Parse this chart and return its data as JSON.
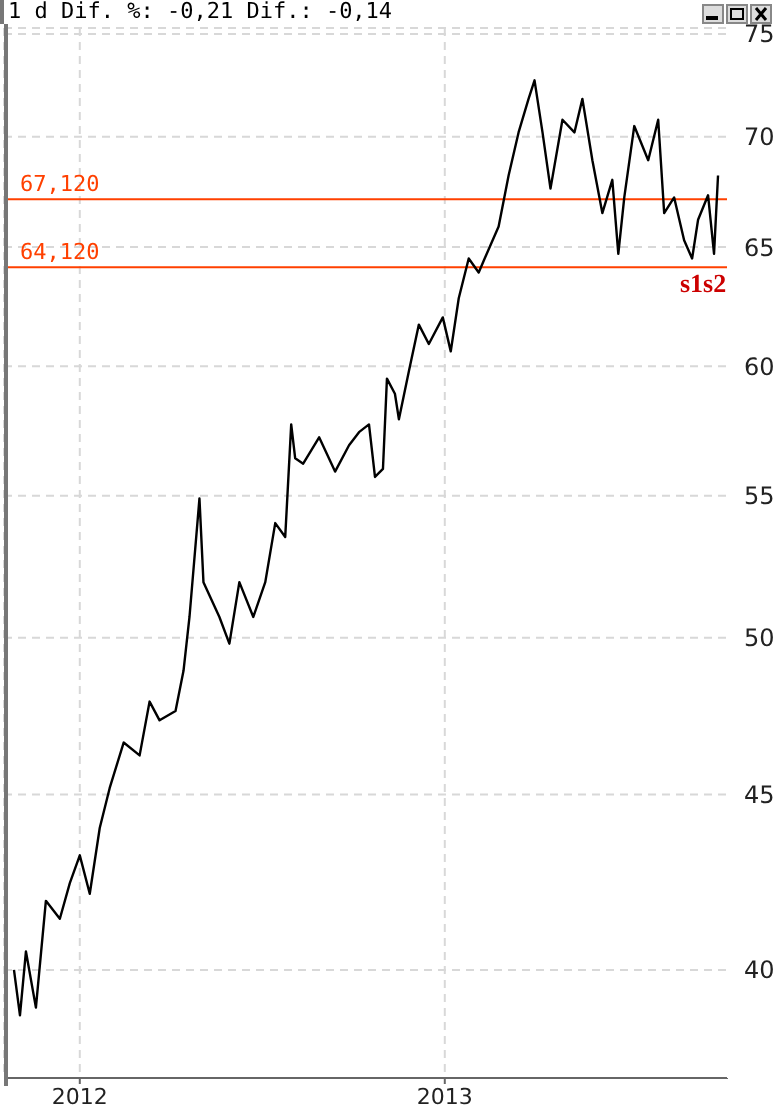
{
  "chart_data": {
    "type": "line",
    "title": "1 d Dif. %: -0,21 Dif.: -0,14",
    "log": true,
    "grid": true,
    "x": [
      "2011-10-27",
      "2011-11-02",
      "2011-11-08",
      "2011-11-18",
      "2011-11-28",
      "2011-12-12",
      "2011-12-22",
      "2012-01-01",
      "2012-01-11",
      "2012-01-21",
      "2012-01-31",
      "2012-02-14",
      "2012-03-01",
      "2012-03-11",
      "2012-03-21",
      "2012-04-06",
      "2012-04-14",
      "2012-04-20",
      "2012-04-30",
      "2012-05-04",
      "2012-05-20",
      "2012-05-30",
      "2012-06-09",
      "2012-06-23",
      "2012-07-05",
      "2012-07-15",
      "2012-07-25",
      "2012-07-31",
      "2012-08-04",
      "2012-08-12",
      "2012-08-28",
      "2012-09-13",
      "2012-09-27",
      "2012-10-07",
      "2012-10-17",
      "2012-10-23",
      "2012-10-31",
      "2012-11-04",
      "2012-11-12",
      "2012-11-16",
      "2012-11-26",
      "2012-12-06",
      "2012-12-16",
      "2012-12-30",
      "2013-01-07",
      "2013-01-15",
      "2013-01-25",
      "2013-02-04",
      "2013-02-10",
      "2013-02-24",
      "2013-03-06",
      "2013-03-16",
      "2013-03-26",
      "2013-04-01",
      "2013-04-09",
      "2013-04-17",
      "2013-04-29",
      "2013-05-11",
      "2013-05-19",
      "2013-05-29",
      "2013-06-08",
      "2013-06-18",
      "2013-06-24",
      "2013-06-30",
      "2013-07-10",
      "2013-07-24",
      "2013-08-03",
      "2013-08-09",
      "2013-08-19",
      "2013-08-29",
      "2013-09-06",
      "2013-09-12",
      "2013-09-22",
      "2013-09-28",
      "2013-10-02"
    ],
    "series": [
      {
        "color": "#000000",
        "values": [
          40.0,
          38.8,
          40.5,
          39.0,
          41.9,
          41.4,
          42.4,
          43.2,
          42.1,
          44.0,
          45.2,
          46.6,
          46.2,
          47.9,
          47.3,
          47.6,
          48.9,
          50.7,
          54.9,
          51.9,
          50.7,
          49.8,
          51.9,
          50.7,
          51.9,
          54.0,
          53.5,
          57.7,
          56.4,
          56.2,
          57.2,
          55.9,
          56.9,
          57.4,
          57.7,
          55.7,
          56.0,
          59.5,
          58.9,
          57.9,
          59.8,
          61.7,
          60.9,
          62.0,
          60.6,
          62.8,
          64.5,
          63.9,
          64.5,
          65.9,
          68.2,
          70.2,
          71.8,
          72.7,
          70.2,
          67.6,
          70.8,
          70.2,
          71.8,
          68.9,
          66.5,
          68.0,
          64.7,
          67.2,
          70.5,
          68.9,
          70.8,
          66.5,
          67.2,
          65.3,
          64.5,
          66.2,
          67.3,
          64.7,
          68.2
        ]
      }
    ],
    "xlim": [
      "2011-10-17",
      "2013-10-12"
    ],
    "xticks": [
      "2012",
      "2013"
    ],
    "ylim": [
      37.2,
      75.3
    ],
    "yticks": [
      40,
      45,
      50,
      55,
      60,
      65,
      70,
      75
    ],
    "ref_lines": [
      {
        "axis": "y",
        "value": 67.12,
        "label": "67,120",
        "color": "#ff4000"
      },
      {
        "axis": "y",
        "value": 64.12,
        "label": "64,120",
        "color": "#ff4000"
      }
    ],
    "annotations": [
      "s1s2"
    ]
  }
}
